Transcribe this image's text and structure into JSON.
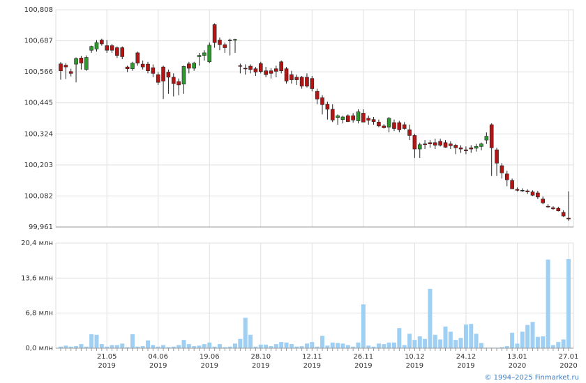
{
  "chart_data": [
    {
      "type": "candlestick",
      "categories": [
        null,
        null,
        null,
        null,
        null,
        null,
        null,
        null,
        null,
        "21.05",
        null,
        null,
        null,
        null,
        null,
        null,
        null,
        null,
        null,
        "04.06",
        null,
        null,
        null,
        null,
        null,
        null,
        null,
        null,
        null,
        "19.06",
        null,
        null,
        null,
        null,
        null,
        null,
        null,
        null,
        null,
        "28.10",
        null,
        null,
        null,
        null,
        null,
        null,
        null,
        null,
        null,
        "12.11",
        null,
        null,
        null,
        null,
        null,
        null,
        null,
        null,
        null,
        "26.11",
        null,
        null,
        null,
        null,
        null,
        null,
        null,
        null,
        null,
        "10.12",
        null,
        null,
        null,
        null,
        null,
        null,
        null,
        null,
        null,
        "24.12",
        null,
        null,
        null,
        null,
        null,
        null,
        null,
        null,
        null,
        "13.01",
        null,
        null,
        null,
        null,
        null,
        null,
        null,
        null,
        null,
        "27.01"
      ],
      "category_years": [
        null,
        null,
        null,
        null,
        null,
        null,
        null,
        null,
        null,
        "2019",
        null,
        null,
        null,
        null,
        null,
        null,
        null,
        null,
        null,
        "2019",
        null,
        null,
        null,
        null,
        null,
        null,
        null,
        null,
        null,
        "2019",
        null,
        null,
        null,
        null,
        null,
        null,
        null,
        null,
        null,
        "2019",
        null,
        null,
        null,
        null,
        null,
        null,
        null,
        null,
        null,
        "2019",
        null,
        null,
        null,
        null,
        null,
        null,
        null,
        null,
        null,
        "2019",
        null,
        null,
        null,
        null,
        null,
        null,
        null,
        null,
        null,
        "2019",
        null,
        null,
        null,
        null,
        null,
        null,
        null,
        null,
        null,
        "2019",
        null,
        null,
        null,
        null,
        null,
        null,
        null,
        null,
        null,
        "2020",
        null,
        null,
        null,
        null,
        null,
        null,
        null,
        null,
        null,
        "2020"
      ],
      "open": [
        100.597,
        100.592,
        100.567,
        100.596,
        100.62,
        100.575,
        100.65,
        100.655,
        100.69,
        100.668,
        100.668,
        100.66,
        100.66,
        100.585,
        100.578,
        100.64,
        100.596,
        100.596,
        100.582,
        100.555,
        100.585,
        100.565,
        100.545,
        100.528,
        100.518,
        100.597,
        100.58,
        100.625,
        100.63,
        100.605,
        100.75,
        100.69,
        100.672,
        100.69,
        100.69,
        100.59,
        100.58,
        100.588,
        100.578,
        100.598,
        100.57,
        100.57,
        100.578,
        100.605,
        100.578,
        100.555,
        100.545,
        100.545,
        100.545,
        100.54,
        100.49,
        100.465,
        100.44,
        100.42,
        100.388,
        100.38,
        100.395,
        100.395,
        100.375,
        100.405,
        100.385,
        100.38,
        100.37,
        100.355,
        100.35,
        100.368,
        100.368,
        100.36,
        100.34,
        100.318,
        100.265,
        100.285,
        100.29,
        100.29,
        100.295,
        100.29,
        100.285,
        100.28,
        100.27,
        100.262,
        100.27,
        100.268,
        100.275,
        100.3,
        100.36,
        100.262,
        100.2,
        100.168,
        100.142,
        100.108,
        100.104,
        100.102,
        100.098,
        100.094,
        100.07,
        100.042,
        100.036,
        100.034,
        100.018,
        99.996
      ],
      "high": [
        100.604,
        100.6,
        100.578,
        100.622,
        100.628,
        100.63,
        100.668,
        100.69,
        100.695,
        100.69,
        100.675,
        100.665,
        100.665,
        100.59,
        100.605,
        100.645,
        100.61,
        100.605,
        100.595,
        100.565,
        100.59,
        100.575,
        100.56,
        100.54,
        100.59,
        100.605,
        100.605,
        100.64,
        100.65,
        100.68,
        100.755,
        100.7,
        100.68,
        100.695,
        100.695,
        100.598,
        100.595,
        100.595,
        100.585,
        100.605,
        100.585,
        100.58,
        100.59,
        100.61,
        100.585,
        100.57,
        100.555,
        100.55,
        100.56,
        100.55,
        100.5,
        100.475,
        100.45,
        100.44,
        100.4,
        100.395,
        100.4,
        100.405,
        100.42,
        100.42,
        100.395,
        100.39,
        100.38,
        100.362,
        100.39,
        100.38,
        100.375,
        100.37,
        100.36,
        100.325,
        100.29,
        100.3,
        100.3,
        100.305,
        100.305,
        100.3,
        100.295,
        100.285,
        100.28,
        100.275,
        100.28,
        100.285,
        100.29,
        100.33,
        100.365,
        100.27,
        100.21,
        100.18,
        100.15,
        100.115,
        100.112,
        100.108,
        100.104,
        100.102,
        100.08,
        100.05,
        100.042,
        100.04,
        100.026,
        100.1
      ],
      "low": [
        100.535,
        100.538,
        100.548,
        100.525,
        100.575,
        100.57,
        100.64,
        100.645,
        100.668,
        100.64,
        100.64,
        100.62,
        100.615,
        100.565,
        100.57,
        100.59,
        100.575,
        100.56,
        100.545,
        100.515,
        100.46,
        100.48,
        100.47,
        100.475,
        100.48,
        100.56,
        100.57,
        100.59,
        100.61,
        100.6,
        100.66,
        100.65,
        100.64,
        100.63,
        100.64,
        100.56,
        100.555,
        100.56,
        100.55,
        100.56,
        100.545,
        100.54,
        100.545,
        100.56,
        100.52,
        100.52,
        100.515,
        100.5,
        100.505,
        100.49,
        100.44,
        100.4,
        100.38,
        100.37,
        100.36,
        100.365,
        100.37,
        100.368,
        100.365,
        100.37,
        100.36,
        100.36,
        100.35,
        100.345,
        100.33,
        100.335,
        100.33,
        100.34,
        100.3,
        100.23,
        100.23,
        100.265,
        100.27,
        100.265,
        100.275,
        100.27,
        100.265,
        100.245,
        100.25,
        100.245,
        100.25,
        100.255,
        100.26,
        100.285,
        100.16,
        100.16,
        100.15,
        100.12,
        100.11,
        100.1,
        100.098,
        100.09,
        100.082,
        100.07,
        100.05,
        100.035,
        100.028,
        100.022,
        100.0,
        99.985
      ],
      "close": [
        100.57,
        100.585,
        100.56,
        100.618,
        100.6,
        100.622,
        100.665,
        100.68,
        100.675,
        100.65,
        100.65,
        100.63,
        100.625,
        100.578,
        100.6,
        100.6,
        100.585,
        100.57,
        100.56,
        100.525,
        100.53,
        100.545,
        100.52,
        100.515,
        100.587,
        100.58,
        100.6,
        100.63,
        100.64,
        100.67,
        100.68,
        100.672,
        100.66,
        100.69,
        100.692,
        100.588,
        100.578,
        100.575,
        100.565,
        100.567,
        100.555,
        100.56,
        100.568,
        100.57,
        100.53,
        100.535,
        100.535,
        100.51,
        100.51,
        100.5,
        100.46,
        100.438,
        100.42,
        100.378,
        100.395,
        100.39,
        100.372,
        100.378,
        100.41,
        100.37,
        100.377,
        100.372,
        100.355,
        100.348,
        100.385,
        100.345,
        100.34,
        100.345,
        100.318,
        100.265,
        100.282,
        100.282,
        100.285,
        100.28,
        100.28,
        100.272,
        100.278,
        100.27,
        100.265,
        100.258,
        100.265,
        100.275,
        100.285,
        100.315,
        100.27,
        100.21,
        100.172,
        100.145,
        100.11,
        100.104,
        100.104,
        100.098,
        100.085,
        100.078,
        100.055,
        100.04,
        100.032,
        100.024,
        100.004,
        99.992
      ],
      "up_color": "#2e9a2e",
      "down_color": "#b31414",
      "ylim": [
        99.961,
        100.808
      ],
      "yticks": [
        {
          "value": 99.961,
          "label": "99,961"
        },
        {
          "value": 100.082,
          "label": "100,082"
        },
        {
          "value": 100.203,
          "label": "100,203"
        },
        {
          "value": 100.324,
          "label": "100,324"
        },
        {
          "value": 100.445,
          "label": "100,445"
        },
        {
          "value": 100.566,
          "label": "100,566"
        },
        {
          "value": 100.687,
          "label": "100,687"
        },
        {
          "value": 100.808,
          "label": "100,808"
        }
      ],
      "grid": true
    },
    {
      "type": "bar",
      "values": [
        0.3,
        0.5,
        0.3,
        0.4,
        0.8,
        0.3,
        2.7,
        2.6,
        0.8,
        0.3,
        0.6,
        0.6,
        0.9,
        0.2,
        2.7,
        0.3,
        0.4,
        1.5,
        0.6,
        0.3,
        0.6,
        0.2,
        0.3,
        0.6,
        1.6,
        0.8,
        0.4,
        0.5,
        0.8,
        1.1,
        0.3,
        0.8,
        0.2,
        0.3,
        0.9,
        1.8,
        5.9,
        2.6,
        0.3,
        0.7,
        0.7,
        0.4,
        0.8,
        1.2,
        1.1,
        0.8,
        0.3,
        0.4,
        0.9,
        1.2,
        0.3,
        2.4,
        0.5,
        1.1,
        1.0,
        0.9,
        0.6,
        0.3,
        1.1,
        8.5,
        0.5,
        0.3,
        0.9,
        0.8,
        1.1,
        1.1,
        3.9,
        0.6,
        2.8,
        1.6,
        2.3,
        1.8,
        11.5,
        2.6,
        1.7,
        4.2,
        3.2,
        1.6,
        2.0,
        4.6,
        4.7,
        2.8,
        1.0,
        0.1,
        0.1,
        0.1,
        0.2,
        0.4,
        3.0,
        0.9,
        3.2,
        4.5,
        5.1,
        2.2,
        2.3,
        17.2,
        0.6,
        1.2,
        1.7,
        17.3
      ],
      "color": "#9fd0f4",
      "ylim": [
        0,
        20.4
      ],
      "yticks": [
        {
          "value": 0,
          "label": "0,0 млн"
        },
        {
          "value": 6.8,
          "label": "6,8 млн"
        },
        {
          "value": 13.6,
          "label": "13,6 млн"
        },
        {
          "value": 20.4,
          "label": "20,4 млн"
        }
      ],
      "grid": true
    }
  ],
  "footer": "© 1994–2025 Finmarket.ru"
}
